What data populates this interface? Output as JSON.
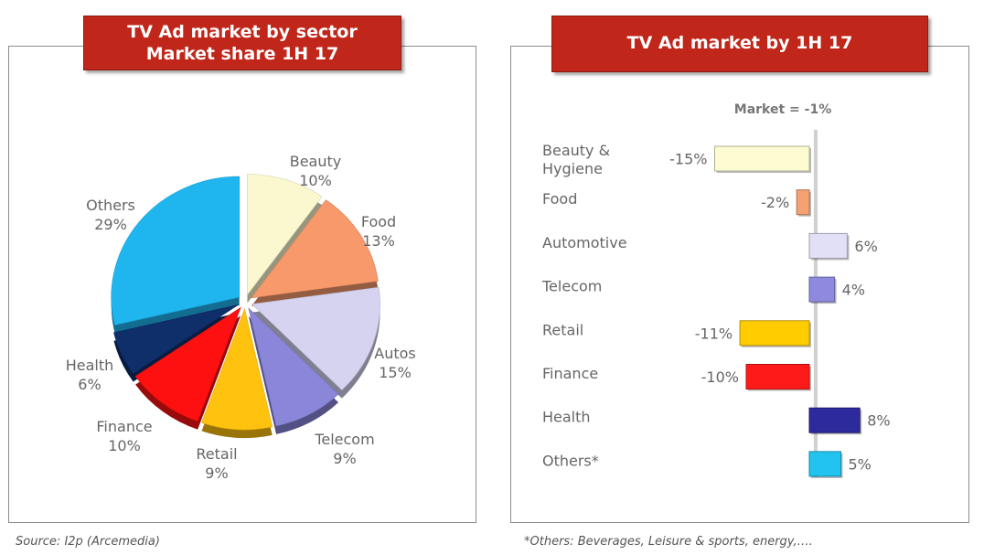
{
  "left_title_line1": "TV Ad market by sector",
  "left_title_line2": "Market share 1H 17",
  "right_title": "TV Ad market by 1H 17",
  "source": "Source: I2p (Arcemedia)",
  "footnote": "*Others: Beverages, Leisure & sports, energy,….",
  "chart_data": [
    {
      "type": "pie",
      "title": "TV Ad market by sector Market share 1H 17",
      "slices": [
        {
          "label": "Beauty",
          "value": 10,
          "value_label": "10%",
          "color": "#fbf8d0"
        },
        {
          "label": "Food",
          "value": 13,
          "value_label": "13%",
          "color": "#f7996b"
        },
        {
          "label": "Autos",
          "value": 15,
          "value_label": "15%",
          "color": "#d6d3f0"
        },
        {
          "label": "Telecom",
          "value": 9,
          "value_label": "9%",
          "color": "#8a86da"
        },
        {
          "label": "Retail",
          "value": 9,
          "value_label": "9%",
          "color": "#ffc20e"
        },
        {
          "label": "Finance",
          "value": 10,
          "value_label": "10%",
          "color": "#ff1010"
        },
        {
          "label": "Health",
          "value": 6,
          "value_label": "6%",
          "color": "#0f2f6a"
        },
        {
          "label": "Others",
          "value": 29,
          "value_label": "29%",
          "color": "#1fb6f0"
        }
      ]
    },
    {
      "type": "bar",
      "orientation": "horizontal",
      "title": "TV Ad market by 1H 17",
      "reference_label": "Market = -1%",
      "reference_value": -1,
      "xlim": [
        -16,
        9
      ],
      "categories": [
        "Beauty & Hygiene",
        "Food",
        "Automotive",
        "Telecom",
        "Retail",
        "Finance",
        "Health",
        "Others*"
      ],
      "category_lines": [
        [
          "Beauty &",
          "Hygiene"
        ],
        [
          "Food"
        ],
        [
          "Automotive"
        ],
        [
          "Telecom"
        ],
        [
          "Retail"
        ],
        [
          "Finance"
        ],
        [
          "Health"
        ],
        [
          "Others*"
        ]
      ],
      "values": [
        -15,
        -2,
        6,
        4,
        -11,
        -10,
        8,
        5
      ],
      "value_labels": [
        "-15%",
        "-2%",
        "6%",
        "4%",
        "-11%",
        "-10%",
        "8%",
        "5%"
      ],
      "colors": [
        "#fdfbd2",
        "#f4a273",
        "#e2e0f6",
        "#8e8ae0",
        "#ffcc00",
        "#ff1a1a",
        "#2c2a9c",
        "#22c3ee"
      ]
    }
  ]
}
